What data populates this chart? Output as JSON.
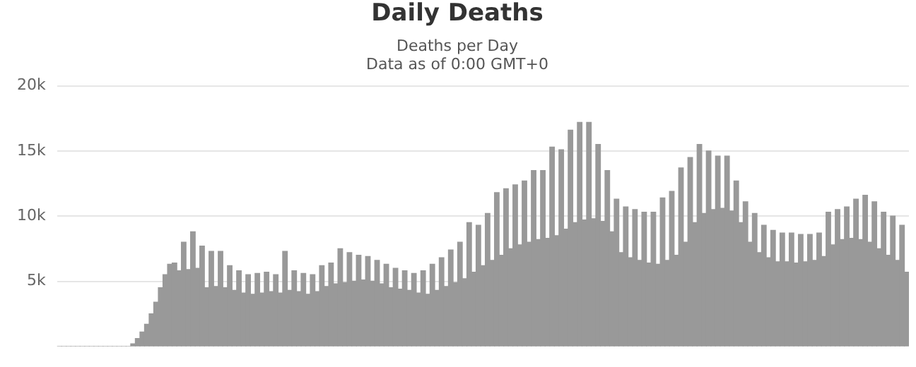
{
  "chart_data": {
    "type": "bar",
    "title": "Daily Deaths",
    "subtitle": "Deaths per Day\nData as of 0:00 GMT+0",
    "categories": [
      null,
      null,
      null,
      null,
      null,
      null,
      null,
      null,
      null,
      null,
      null,
      null,
      null,
      null,
      null,
      null,
      null,
      null,
      null,
      null,
      null,
      null,
      null,
      null,
      null,
      null,
      null,
      null,
      null,
      null,
      null,
      null,
      null,
      null,
      null,
      null,
      null,
      null,
      null,
      null,
      null,
      null,
      null,
      null,
      null,
      null,
      null,
      null,
      null,
      null,
      null,
      null,
      null,
      null,
      null,
      null,
      null,
      null,
      null,
      null,
      null,
      null,
      null,
      null,
      null,
      null,
      null,
      null,
      null,
      null,
      null,
      null,
      null,
      null,
      null,
      null,
      null,
      null,
      null,
      null,
      null,
      null,
      null,
      null,
      null,
      null,
      null,
      null,
      null,
      null,
      null,
      null,
      null,
      null,
      null,
      null,
      null,
      null,
      null,
      null,
      null,
      null,
      null,
      null,
      null,
      null,
      null,
      null,
      null,
      null,
      null,
      null,
      null,
      null,
      null,
      null,
      null,
      null,
      null,
      null,
      null,
      null,
      null,
      null,
      null,
      null,
      null,
      null,
      null,
      null,
      null,
      null,
      null,
      null,
      null,
      null,
      null,
      null,
      null,
      null,
      null,
      null,
      null,
      null,
      null,
      null,
      null,
      null,
      null,
      null,
      null,
      null,
      null,
      null,
      null,
      null,
      null,
      null,
      null,
      null,
      null,
      null,
      null,
      null,
      null,
      null,
      null,
      null,
      null,
      null,
      null,
      null,
      null,
      null,
      null,
      null,
      null,
      null,
      null,
      null,
      null,
      null,
      null,
      null,
      null
    ],
    "values": [
      0,
      0,
      0,
      0,
      0,
      0,
      0,
      0,
      0,
      0,
      0,
      0,
      0,
      0,
      0,
      0,
      200,
      600,
      1100,
      1700,
      2500,
      3400,
      4500,
      5500,
      6300,
      6400,
      5800,
      8000,
      5900,
      8800,
      6000,
      7700,
      4500,
      7300,
      4600,
      7300,
      4500,
      6200,
      4300,
      5800,
      4100,
      5500,
      4000,
      5600,
      4100,
      5700,
      4200,
      5500,
      4100,
      7300,
      4300,
      5800,
      4200,
      5600,
      4000,
      5500,
      4200,
      6200,
      4600,
      6400,
      4800,
      7500,
      4900,
      7200,
      5000,
      7000,
      5100,
      6900,
      5000,
      6600,
      4800,
      6300,
      4500,
      6000,
      4400,
      5800,
      4300,
      5600,
      4100,
      5800,
      4000,
      6300,
      4300,
      6800,
      4600,
      7400,
      4900,
      8000,
      5200,
      9500,
      5700,
      9300,
      6200,
      10200,
      6600,
      11800,
      7000,
      12100,
      7500,
      12400,
      7800,
      12700,
      8000,
      13500,
      8200,
      13500,
      8300,
      15300,
      8500,
      15100,
      9000,
      16600,
      9500,
      17200,
      9700,
      17200,
      9800,
      15500,
      9600,
      13500,
      8800,
      11300,
      7200,
      10700,
      6800,
      10500,
      6600,
      10300,
      6400,
      10300,
      6300,
      11400,
      6600,
      11900,
      7000,
      13700,
      8000,
      14500,
      9500,
      15500,
      10200,
      15000,
      10500,
      14600,
      10600,
      14600,
      10400,
      12700,
      9500,
      11100,
      8000,
      10200,
      7200,
      9300,
      6800,
      8900,
      6500,
      8700,
      6500,
      8700,
      6400,
      8600,
      6500,
      8600,
      6600,
      8700,
      6900,
      10300,
      7800,
      10500,
      8200,
      10700,
      8300,
      11300,
      8200,
      11600,
      8000,
      11100,
      7500,
      10300,
      7000,
      10000,
      6600,
      9300,
      5700
    ],
    "color": "#999999",
    "ylim": [
      0,
      20000
    ],
    "yticks": [
      {
        "value": 5000,
        "label": "5k"
      },
      {
        "value": 10000,
        "label": "10k"
      },
      {
        "value": 15000,
        "label": "15k"
      },
      {
        "value": 20000,
        "label": "20k"
      }
    ],
    "grid": "y",
    "tick_labels": "y"
  }
}
